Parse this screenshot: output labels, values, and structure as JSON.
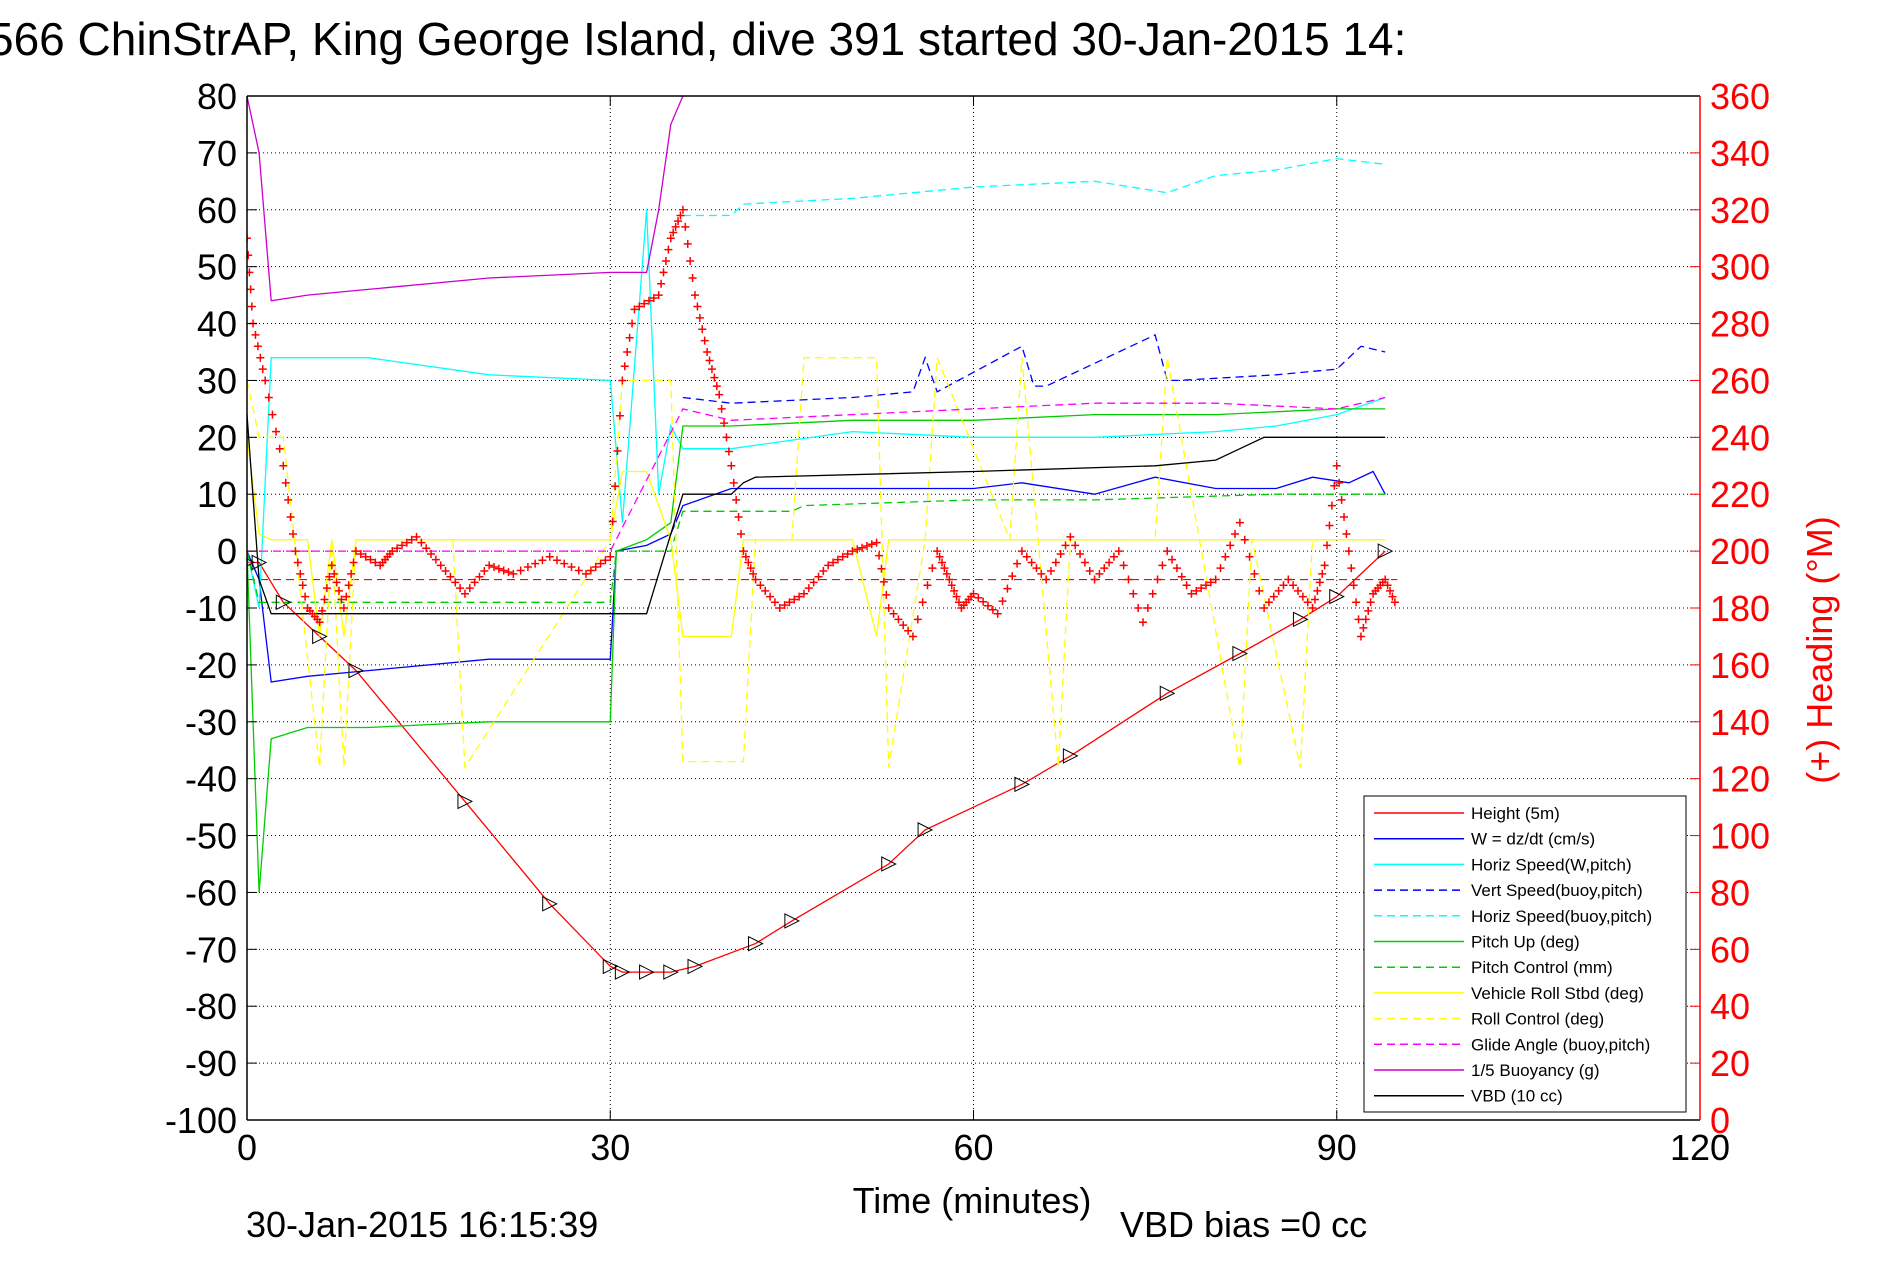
{
  "chart_data": {
    "type": "line",
    "title": "566 ChinStrAP, King George Island, dive 391 started 30-Jan-2015 14:",
    "xlabel": "Time (minutes)",
    "ylabel": "",
    "ylabel_right": "(+) Heading (°M)",
    "xlim": [
      0,
      120
    ],
    "ylim": [
      -100,
      80
    ],
    "ylim_right": [
      0,
      360
    ],
    "grid": true,
    "legend_position": "lower-right",
    "xticks": [
      "0",
      "30",
      "60",
      "90",
      "120"
    ],
    "yticks_left": [
      "80",
      "70",
      "60",
      "50",
      "40",
      "30",
      "20",
      "10",
      "0",
      "-10",
      "-20",
      "-30",
      "-40",
      "-50",
      "-60",
      "-70",
      "-80",
      "-90",
      "-100"
    ],
    "yticks_right": [
      "360",
      "340",
      "320",
      "300",
      "280",
      "260",
      "240",
      "220",
      "200",
      "180",
      "160",
      "140",
      "120",
      "100",
      "80",
      "60",
      "40",
      "20",
      "0"
    ],
    "footer_left": "30-Jan-2015 16:15:39",
    "footer_right": "VBD bias =0 cc",
    "series": [
      {
        "name": "Height (5m)",
        "color": "#ff0000",
        "dash": "solid",
        "x": [
          0,
          1,
          3,
          6,
          9,
          18,
          25,
          30,
          31,
          33,
          35,
          37,
          42,
          45,
          53,
          56,
          64,
          68,
          76,
          82,
          87,
          90,
          94
        ],
        "y": [
          -2,
          -2,
          -9,
          -15,
          -21,
          -44,
          -62,
          -73,
          -74,
          -74,
          -74,
          -73,
          -69,
          -65,
          -55,
          -49,
          -41,
          -36,
          -25,
          -18,
          -12,
          -8,
          0
        ]
      },
      {
        "name": "W = dz/dt (cm/s)",
        "color": "#0000ff",
        "dash": "solid",
        "x": [
          0,
          1,
          2,
          5,
          10,
          20,
          30,
          30.5,
          33,
          35,
          36,
          40,
          50,
          60,
          64,
          70,
          75,
          80,
          85,
          88,
          91,
          93,
          94
        ],
        "y": [
          0,
          -5,
          -23,
          -22,
          -21,
          -19,
          -19,
          0,
          1,
          3,
          8,
          11,
          11,
          11,
          12,
          10,
          13,
          11,
          11,
          13,
          12,
          14,
          10
        ]
      },
      {
        "name": "Horiz Speed(W,pitch)",
        "color": "#00ffff",
        "dash": "solid",
        "x": [
          0,
          1,
          2,
          5,
          10,
          20,
          30,
          31,
          33,
          34,
          35,
          36,
          40,
          50,
          60,
          70,
          80,
          85,
          90,
          94
        ],
        "y": [
          0,
          -10,
          34,
          34,
          34,
          31,
          30,
          5,
          60,
          10,
          22,
          18,
          18,
          21,
          20,
          20,
          21,
          22,
          24,
          27
        ]
      },
      {
        "name": "Vert Speed(buoy,pitch)",
        "color": "#0000ff",
        "dash": "dashed",
        "x": [
          36,
          40,
          50,
          55,
          56,
          57,
          64,
          65,
          66,
          75,
          76,
          77,
          85,
          90,
          92,
          94
        ],
        "y": [
          27,
          26,
          27,
          28,
          34,
          28,
          36,
          29,
          29,
          38,
          30,
          30,
          31,
          32,
          36,
          35
        ]
      },
      {
        "name": "Horiz Speed(buoy,pitch)",
        "color": "#00ffff",
        "dash": "dashed",
        "x": [
          36,
          40,
          41,
          50,
          60,
          70,
          76,
          80,
          85,
          90,
          94
        ],
        "y": [
          59,
          59,
          61,
          62,
          64,
          65,
          63,
          66,
          67,
          69,
          68
        ]
      },
      {
        "name": "Pitch Up (deg)",
        "color": "#00cc00",
        "dash": "solid",
        "x": [
          0,
          1,
          2,
          5,
          10,
          20,
          30,
          30.5,
          33,
          35,
          36,
          40,
          50,
          60,
          70,
          80,
          90,
          94
        ],
        "y": [
          0,
          -60,
          -33,
          -31,
          -31,
          -30,
          -30,
          0,
          2,
          5,
          22,
          22,
          23,
          23,
          24,
          24,
          25,
          25
        ]
      },
      {
        "name": "Pitch Control (mm)",
        "color": "#00cc00",
        "dash": "dashed",
        "x": [
          0,
          1,
          2,
          30,
          30.5,
          35,
          36,
          45,
          46,
          60,
          70,
          85,
          94
        ],
        "y": [
          0,
          -9,
          -9,
          -9,
          0,
          0,
          7,
          7,
          8,
          9,
          9,
          10,
          10
        ]
      },
      {
        "name": "Vehicle Roll Stbd (deg)",
        "color": "#ffff00",
        "dash": "solid",
        "x": [
          0,
          1,
          2,
          5,
          6,
          7,
          8,
          9,
          10,
          18,
          20,
          30,
          31,
          33,
          35,
          36,
          40,
          41,
          50,
          52,
          53,
          60,
          70,
          80,
          90,
          94
        ],
        "y": [
          20,
          3,
          2,
          2,
          -15,
          2,
          -15,
          2,
          2,
          2,
          2,
          2,
          14,
          14,
          2,
          -15,
          -15,
          2,
          2,
          -15,
          2,
          2,
          2,
          2,
          2,
          2
        ]
      },
      {
        "name": "Roll Control (deg)",
        "color": "#ffff00",
        "dash": "dashed",
        "x": [
          0,
          1,
          3,
          6,
          7,
          8,
          9,
          10,
          17,
          18,
          30,
          31,
          35,
          36,
          41,
          42,
          45,
          46,
          52,
          53,
          56,
          57,
          63,
          64,
          67,
          68,
          75,
          76,
          82,
          83,
          87,
          88,
          94
        ],
        "y": [
          30,
          20,
          20,
          -38,
          2,
          -38,
          2,
          2,
          2,
          -38,
          2,
          30,
          30,
          -37,
          -37,
          2,
          2,
          34,
          34,
          -38,
          2,
          34,
          2,
          34,
          -38,
          2,
          2,
          34,
          -38,
          2,
          -38,
          2,
          2
        ]
      },
      {
        "name": "Glide Angle (buoy,pitch)",
        "color": "#ff00ff",
        "dash": "dashed",
        "x": [
          0,
          30,
          36,
          40,
          50,
          60,
          70,
          80,
          90,
          94
        ],
        "y": [
          0,
          0,
          25,
          23,
          24,
          25,
          26,
          26,
          25,
          27
        ]
      },
      {
        "name": "1/5 Buoyancy (g)",
        "color": "#cc00cc",
        "dash": "solid",
        "x": [
          0,
          1,
          2,
          5,
          10,
          20,
          30,
          33,
          34,
          35,
          36
        ],
        "y": [
          80,
          70,
          44,
          45,
          46,
          48,
          49,
          49,
          60,
          75,
          80
        ]
      },
      {
        "name": "VBD (10 cc)",
        "color": "#000000",
        "dash": "solid",
        "x": [
          0,
          1,
          2,
          30,
          33,
          36,
          40,
          41,
          42,
          60,
          75,
          80,
          82,
          84,
          88,
          94
        ],
        "y": [
          24,
          -5,
          -11,
          -11,
          -11,
          10,
          10,
          12,
          13,
          14,
          15,
          16,
          18,
          20,
          20,
          20
        ]
      }
    ],
    "heading": {
      "name": "Heading (°M)",
      "color": "#ff0000",
      "axis": "right",
      "x": [
        0,
        0.5,
        1.5,
        3,
        4,
        5,
        6,
        7,
        8,
        9,
        11,
        12,
        14,
        16,
        18,
        20,
        22,
        25,
        28,
        30,
        31,
        32,
        34,
        35,
        36,
        37,
        38,
        39,
        40,
        41,
        42,
        44,
        46,
        48,
        50,
        52,
        53,
        55,
        57,
        58,
        59,
        60,
        62,
        64,
        66,
        68,
        70,
        72,
        74,
        76,
        78,
        80,
        82,
        84,
        86,
        88,
        89,
        90,
        91,
        92,
        93,
        94,
        95
      ],
      "y": [
        310,
        280,
        260,
        230,
        200,
        180,
        175,
        195,
        180,
        200,
        195,
        200,
        205,
        195,
        185,
        195,
        192,
        198,
        192,
        198,
        260,
        285,
        290,
        310,
        320,
        290,
        270,
        255,
        230,
        200,
        190,
        180,
        185,
        195,
        200,
        203,
        180,
        170,
        200,
        190,
        180,
        185,
        178,
        200,
        190,
        205,
        190,
        200,
        175,
        200,
        185,
        190,
        210,
        180,
        190,
        180,
        195,
        230,
        200,
        170,
        185,
        190,
        180
      ]
    },
    "heading_reference": {
      "color": "#ff0000",
      "dash": "dashed",
      "value": 190
    }
  }
}
